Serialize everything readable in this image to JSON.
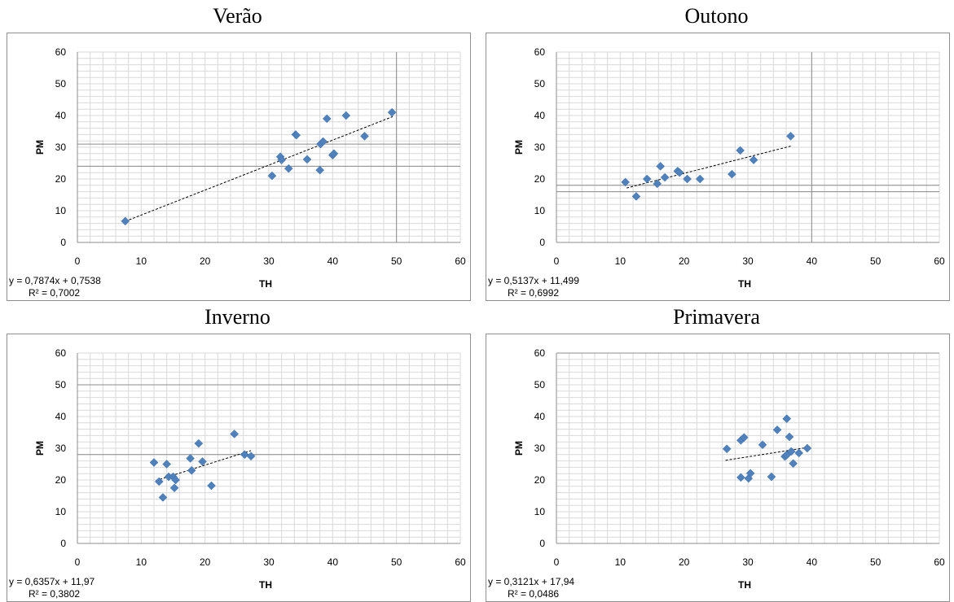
{
  "charts": [
    {
      "title": "Verão",
      "xlabel": "TH",
      "ylabel": "PM",
      "equation": "y = 0,7874x + 0,7538",
      "r_squared": "R² = 0,7002",
      "major_y": [
        31,
        24
      ],
      "major_x": [
        50
      ],
      "trend": [
        [
          7.5,
          6.65
        ],
        [
          49.4,
          39.65
        ]
      ],
      "points": [
        [
          7.5,
          6.7
        ],
        [
          30.5,
          21
        ],
        [
          31.8,
          27
        ],
        [
          32,
          26
        ],
        [
          33.1,
          23.3
        ],
        [
          34.2,
          34
        ],
        [
          34.3,
          33.8
        ],
        [
          36,
          26.2
        ],
        [
          38,
          22.8
        ],
        [
          38.1,
          31
        ],
        [
          38.5,
          31.8
        ],
        [
          39.1,
          39
        ],
        [
          40,
          27.5
        ],
        [
          40.2,
          28
        ],
        [
          42.1,
          40
        ],
        [
          45,
          33.5
        ],
        [
          49.3,
          41
        ]
      ]
    },
    {
      "title": "Outono",
      "xlabel": "TH",
      "ylabel": "PM",
      "equation": "y = 0,5137x + 11,499",
      "r_squared": "R² = 0,6992",
      "major_y": [
        18,
        16
      ],
      "major_x": [
        40
      ],
      "trend": [
        [
          11,
          17.15
        ],
        [
          36.7,
          30.35
        ]
      ],
      "points": [
        [
          10.8,
          19
        ],
        [
          12.5,
          14.5
        ],
        [
          14.2,
          20
        ],
        [
          15.8,
          18.5
        ],
        [
          16.3,
          24
        ],
        [
          17,
          20.5
        ],
        [
          19,
          22.5
        ],
        [
          19.3,
          22
        ],
        [
          20.5,
          20
        ],
        [
          22.5,
          20
        ],
        [
          27.5,
          21.5
        ],
        [
          28.8,
          29
        ],
        [
          30.9,
          26
        ],
        [
          36.7,
          33.5
        ]
      ]
    },
    {
      "title": "Inverno",
      "xlabel": "TH",
      "ylabel": "PM",
      "equation": "y = 0,6357x + 11,97",
      "r_squared": "R² = 0,3802",
      "major_y": [
        50,
        28
      ],
      "major_x": [],
      "trend": [
        [
          12.3,
          19.8
        ],
        [
          27.2,
          29.25
        ]
      ],
      "points": [
        [
          12,
          25.5
        ],
        [
          12.8,
          19.5
        ],
        [
          13.4,
          14.5
        ],
        [
          14,
          25
        ],
        [
          14.3,
          21
        ],
        [
          15,
          21
        ],
        [
          15.2,
          17.5
        ],
        [
          15.4,
          20
        ],
        [
          17.7,
          26.8
        ],
        [
          17.9,
          23
        ],
        [
          19,
          31.5
        ],
        [
          19.6,
          25.8
        ],
        [
          21,
          18.2
        ],
        [
          24.6,
          34.5
        ],
        [
          26.2,
          28
        ],
        [
          27.2,
          27.5
        ]
      ]
    },
    {
      "title": "Primavera",
      "xlabel": "TH",
      "ylabel": "PM",
      "equation": "y = 0,3121x + 17,94",
      "r_squared": "R² = 0,0486",
      "major_y": [
        60
      ],
      "major_x": [],
      "trend": [
        [
          26.5,
          26.2
        ],
        [
          39.2,
          30.2
        ]
      ],
      "points": [
        [
          26.7,
          29.8
        ],
        [
          28.9,
          20.8
        ],
        [
          28.9,
          32.5
        ],
        [
          29.4,
          33.4
        ],
        [
          30.1,
          20.5
        ],
        [
          30.4,
          22.1
        ],
        [
          32.3,
          31.1
        ],
        [
          33.7,
          21
        ],
        [
          34.6,
          35.8
        ],
        [
          35.8,
          27.4
        ],
        [
          36.1,
          27.9
        ],
        [
          36.1,
          39.3
        ],
        [
          36.5,
          33.6
        ],
        [
          36.8,
          29
        ],
        [
          37.1,
          25.2
        ],
        [
          38,
          28.5
        ],
        [
          39.3,
          30
        ]
      ]
    }
  ],
  "axes": {
    "xlim": [
      0,
      60
    ],
    "ylim": [
      0,
      60
    ],
    "ticks": [
      "0",
      "10",
      "20",
      "30",
      "40",
      "50",
      "60"
    ],
    "minor_step": 2
  },
  "colors": {
    "marker": "#4f81bd",
    "trend": "#000000",
    "grid_minor": "#d9d9d9",
    "grid_major": "#8c8c8c",
    "axis": "#8c8c8c"
  }
}
